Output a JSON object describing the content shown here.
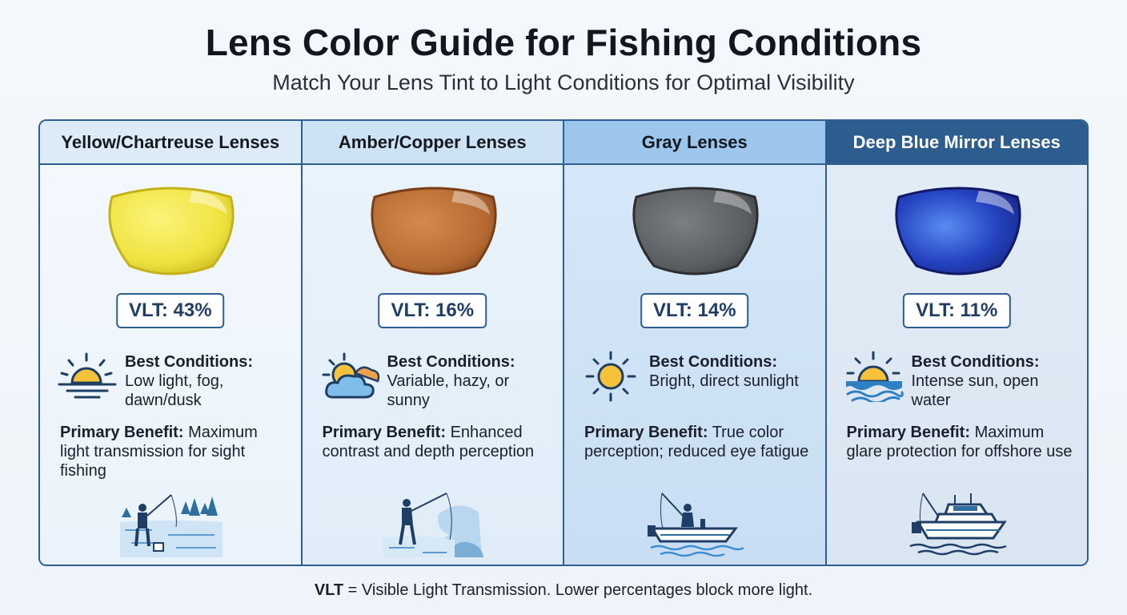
{
  "title": "Lens Color Guide for Fishing Conditions",
  "subtitle": "Match Your Lens Tint to Light Conditions for Optimal Visibility",
  "columns": [
    {
      "header": "Yellow/Chartreuse Lenses",
      "lens_color": "#f2e64a",
      "vlt": "VLT: 43%",
      "conditions_label": "Best Conditions:",
      "conditions_text": "Low light, fog, dawn/dusk",
      "benefit_label": "Primary Benefit:",
      "benefit_text": "Maximum light transmission for sight fishing",
      "icon": "sunrise-icon",
      "scene": "shore-angler-illustration"
    },
    {
      "header": "Amber/Copper Lenses",
      "lens_color": "#b86a32",
      "vlt": "VLT: 16%",
      "conditions_label": "Best Conditions:",
      "conditions_text": "Variable, hazy, or sunny",
      "benefit_label": "Primary Benefit:",
      "benefit_text": "Enhanced contrast and depth perception",
      "icon": "partly-cloudy-icon",
      "scene": "river-angler-illustration"
    },
    {
      "header": "Gray Lenses",
      "lens_color": "#5c5f62",
      "vlt": "VLT: 14%",
      "conditions_label": "Best Conditions:",
      "conditions_text": "Bright, direct sunlight",
      "benefit_label": "Primary Benefit:",
      "benefit_text": "True color perception; reduced eye fatigue",
      "icon": "sun-icon",
      "scene": "small-boat-angler-illustration"
    },
    {
      "header": "Deep Blue Mirror Lenses",
      "lens_color": "#1f3fae",
      "vlt": "VLT: 11%",
      "conditions_label": "Best Conditions:",
      "conditions_text": "Intense sun, open water",
      "benefit_label": "Primary Benefit:",
      "benefit_text": "Maximum glare protection for offshore use",
      "icon": "sun-over-water-icon",
      "scene": "offshore-boat-illustration"
    }
  ],
  "footer": {
    "term": "VLT",
    "text": " = Visible Light Transmission. Lower percentages block more light."
  },
  "colors": {
    "border": "#2f5f92",
    "sun": "#f5c23a",
    "vlt_text": "#1f3e66"
  }
}
